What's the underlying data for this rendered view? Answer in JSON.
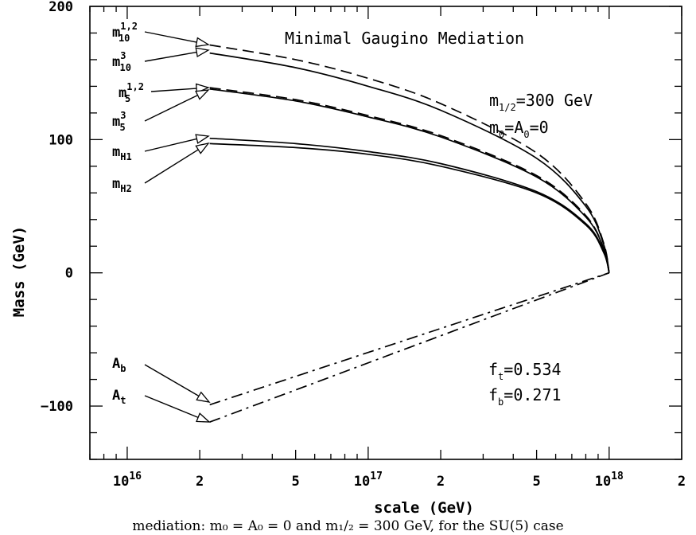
{
  "chart_data": {
    "type": "line",
    "title": "Minimal Gaugino Mediation",
    "xlabel": "scale (GeV)",
    "ylabel": "Mass (GeV)",
    "x_scale": "log",
    "xlim": [
      7000000000000000.0,
      2e+18
    ],
    "ylim": [
      -140,
      200
    ],
    "x_ticks": [
      {
        "value": 1e+16,
        "base": "10",
        "exp": "16"
      },
      {
        "value": 2e+16,
        "label": "2"
      },
      {
        "value": 5e+16,
        "label": "5"
      },
      {
        "value": 1e+17,
        "base": "10",
        "exp": "17"
      },
      {
        "value": 2e+17,
        "label": "2"
      },
      {
        "value": 5e+17,
        "label": "5"
      },
      {
        "value": 1e+18,
        "base": "10",
        "exp": "18"
      },
      {
        "value": 2e+18,
        "label": "2"
      }
    ],
    "y_ticks": [
      {
        "value": 200,
        "label": "200"
      },
      {
        "value": 100,
        "label": "100"
      },
      {
        "value": 0,
        "label": "0"
      },
      {
        "value": -100,
        "label": "−100"
      }
    ],
    "series": [
      {
        "name": "m10^{1,2}",
        "style": "dashed",
        "points": [
          [
            2.2e+16,
            171
          ],
          [
            5e+16,
            160
          ],
          [
            1e+17,
            146
          ],
          [
            2e+17,
            127
          ],
          [
            5e+17,
            90
          ],
          [
            8e+17,
            52
          ],
          [
            9.5e+17,
            22
          ],
          [
            1e+18,
            0
          ]
        ]
      },
      {
        "name": "m10^{3}",
        "style": "solid",
        "points": [
          [
            2.2e+16,
            165
          ],
          [
            5e+16,
            154
          ],
          [
            1e+17,
            140
          ],
          [
            2e+17,
            122
          ],
          [
            5e+17,
            86
          ],
          [
            8e+17,
            50
          ],
          [
            9.5e+17,
            21
          ],
          [
            1e+18,
            0
          ]
        ]
      },
      {
        "name": "m5^{1,2}",
        "style": "dashed",
        "points": [
          [
            2.2e+16,
            139
          ],
          [
            5e+16,
            130
          ],
          [
            1e+17,
            118
          ],
          [
            2e+17,
            103
          ],
          [
            5e+17,
            73
          ],
          [
            8e+17,
            43
          ],
          [
            9.5e+17,
            18
          ],
          [
            1e+18,
            0
          ]
        ]
      },
      {
        "name": "m5^{3}",
        "style": "solid",
        "points": [
          [
            2.2e+16,
            138
          ],
          [
            5e+16,
            129
          ],
          [
            1e+17,
            117
          ],
          [
            2e+17,
            102
          ],
          [
            5e+17,
            72
          ],
          [
            8e+17,
            42
          ],
          [
            9.5e+17,
            18
          ],
          [
            1e+18,
            0
          ]
        ]
      },
      {
        "name": "mH1",
        "style": "solid",
        "points": [
          [
            2.2e+16,
            101
          ],
          [
            5e+16,
            97
          ],
          [
            1e+17,
            91
          ],
          [
            2e+17,
            82
          ],
          [
            5e+17,
            61
          ],
          [
            8e+17,
            37
          ],
          [
            9.5e+17,
            16
          ],
          [
            1e+18,
            0
          ]
        ]
      },
      {
        "name": "mH2",
        "style": "solid",
        "points": [
          [
            2.2e+16,
            97
          ],
          [
            5e+16,
            94
          ],
          [
            1e+17,
            89
          ],
          [
            2e+17,
            80
          ],
          [
            5e+17,
            60
          ],
          [
            8e+17,
            36
          ],
          [
            9.5e+17,
            15
          ],
          [
            1e+18,
            0
          ]
        ]
      },
      {
        "name": "Ab",
        "style": "dashdot",
        "points": [
          [
            2.2e+16,
            -99
          ],
          [
            1e+18,
            0
          ]
        ]
      },
      {
        "name": "At",
        "style": "dashdot",
        "points": [
          [
            2.2e+16,
            -112
          ],
          [
            1e+18,
            0
          ]
        ]
      }
    ],
    "annotations": {
      "params": {
        "m_half": "m",
        "m_half_sub": "1/2",
        "m_half_val": "=300 GeV",
        "m0": "m",
        "m0_sub": "0",
        "m0_rest": "=A",
        "A0_sub": "0",
        "A0_val": "=0"
      },
      "couplings": {
        "ft": "f",
        "ft_sub": "t",
        "ft_val": "=0.534",
        "fb": "f",
        "fb_sub": "b",
        "fb_val": "=0.271"
      }
    },
    "labels": {
      "m10_12": {
        "base": "m",
        "sup": "1,2",
        "sub": "10"
      },
      "m10_3": {
        "base": "m",
        "sup": "3",
        "sub": "10"
      },
      "m5_12": {
        "base": "m",
        "sup": "1,2",
        "sub": "5"
      },
      "m5_3": {
        "base": "m",
        "sup": "3",
        "sub": "5"
      },
      "mH1": {
        "base": "m",
        "sub": "H1"
      },
      "mH2": {
        "base": "m",
        "sub": "H2"
      },
      "Ab": {
        "base": "A",
        "sub": "b"
      },
      "At": {
        "base": "A",
        "sub": "t"
      }
    }
  },
  "caption": "mediation: m₀ = A₀ = 0 and m₁/₂ = 300 GeV, for the SU(5) case"
}
